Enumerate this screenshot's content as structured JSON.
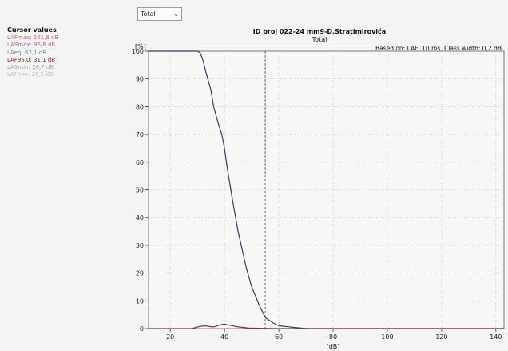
{
  "selector": {
    "value": "Total"
  },
  "cursor_values": {
    "title": "Cursor values",
    "items": [
      {
        "label": "LAFmax: 101,8 dB",
        "color": "#c05a8a"
      },
      {
        "label": "LASmax: 95,6 dB",
        "color": "#b060a0"
      },
      {
        "label": "LAeq: 62,1 dB",
        "color": "#6a7fc0"
      },
      {
        "label": "LAF95,0: 31,1 dB",
        "color": "#8a2040"
      },
      {
        "label": "LASmin: 26,7 dB",
        "color": "#b0a0b8"
      },
      {
        "label": "LAFmin: 26,1 dB",
        "color": "#c0b8c8"
      }
    ]
  },
  "chart_title": "ID broj 022-24 mm9-D.Stratimirovića",
  "chart_subtitle": "Total",
  "chart_info": "Based on: LAF, 10 ms. Class width: 0,2 dB",
  "chart_data": {
    "type": "line",
    "ylabel": "[%]",
    "xlabel": "[dB]",
    "xlim": [
      12,
      143
    ],
    "ylim": [
      0,
      100
    ],
    "xticks": [
      20,
      40,
      60,
      80,
      100,
      120,
      140
    ],
    "yticks": [
      0,
      10,
      20,
      30,
      40,
      50,
      60,
      70,
      80,
      90,
      100
    ],
    "grid": true,
    "cursor_x": 55,
    "series": [
      {
        "color": "#3a3a5a",
        "x": [
          12,
          25,
          30,
          31,
          32,
          33,
          35,
          36,
          38,
          39,
          40,
          41,
          43,
          45,
          48,
          50,
          53,
          55,
          58,
          60,
          65,
          70,
          80,
          143
        ],
        "y": [
          100,
          100,
          100,
          99.5,
          97,
          93,
          86,
          80,
          73,
          70,
          65,
          58,
          46,
          35,
          22,
          15,
          8,
          4,
          2,
          1,
          0.5,
          0,
          0,
          0
        ]
      },
      {
        "color": "#6a3a4a",
        "x": [
          12,
          28,
          29,
          31,
          33,
          35,
          36,
          37,
          38,
          39,
          40,
          41,
          43,
          45,
          47,
          49,
          55,
          60,
          65,
          143
        ],
        "y": [
          0,
          0,
          0.3,
          0.8,
          1.0,
          0.7,
          0.6,
          0.9,
          1.2,
          1.5,
          1.6,
          1.4,
          1.0,
          0.6,
          0.4,
          0.2,
          0.1,
          0,
          0,
          0
        ]
      }
    ]
  },
  "plot_colors": {
    "frame": "#7a7a7a",
    "grid": "#b4b4b4",
    "cursor": "#444444",
    "tick": "#333333"
  }
}
